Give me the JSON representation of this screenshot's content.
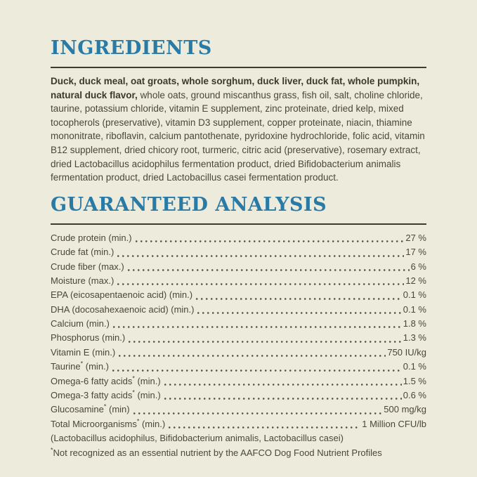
{
  "page": {
    "background_color": "#edebdb",
    "accent_color": "#2a7aa6",
    "text_color": "#4a473a",
    "rule_color": "#3e3b30"
  },
  "ingredients": {
    "heading": "INGREDIENTS",
    "lead_bold": "Duck, duck meal, oat groats, whole sorghum, duck liver, duck fat, whole pumpkin, natural duck flavor,",
    "rest": "whole oats, ground miscanthus grass, fish oil, salt, choline chloride, taurine, potassium chloride, vitamin E supplement, zinc proteinate, dried kelp, mixed tocopherols (preservative), vitamin D3 supplement, copper proteinate, niacin, thiamine mononitrate, riboflavin, calcium pantothenate, pyridoxine hydrochloride, folic acid, vitamin B12 supplement, dried chicory root, turmeric, citric acid (preservative), rosemary extract, dried Lactobacillus acidophilus fermentation product, dried Bifidobacterium animalis fermentation product, dried Lactobacillus casei fermentation product."
  },
  "analysis": {
    "heading": "GUARANTEED ANALYSIS",
    "rows": [
      {
        "label": "Crude protein (min.)",
        "value": "27 %"
      },
      {
        "label": "Crude fat (min.)",
        "value": "17 %"
      },
      {
        "label": "Crude fiber (max.)",
        "value": "6 %"
      },
      {
        "label": "Moisture (max.)",
        "value": "12 %"
      },
      {
        "label": "EPA (eicosapentaenoic acid) (min.)",
        "value": "0.1 %"
      },
      {
        "label": "DHA (docosahexaenoic acid) (min.)",
        "value": "0.1 %"
      },
      {
        "label": "Calcium (min.)",
        "value": "1.8 %"
      },
      {
        "label": "Phosphorus (min.)",
        "value": "1.3 %"
      },
      {
        "label": "Vitamin E (min.)",
        "value": "750 IU/kg"
      },
      {
        "label": "Taurine* (min.)",
        "value": "0.1 %"
      },
      {
        "label": "Omega-6 fatty acids* (min.)",
        "value": "1.5 %"
      },
      {
        "label": "Omega-3 fatty acids* (min.)",
        "value": "0.6 %"
      },
      {
        "label": "Glucosamine* (min)",
        "value": "500 mg/kg"
      },
      {
        "label": "Total Microorganisms* (min.)",
        "value": "1 Million CFU/lb"
      }
    ],
    "subnote": "(Lactobacillus acidophilus, Bifidobacterium animalis, Lactobacillus casei)",
    "footnote": "*Not recognized as an essential nutrient by the AAFCO Dog Food Nutrient Profiles"
  }
}
